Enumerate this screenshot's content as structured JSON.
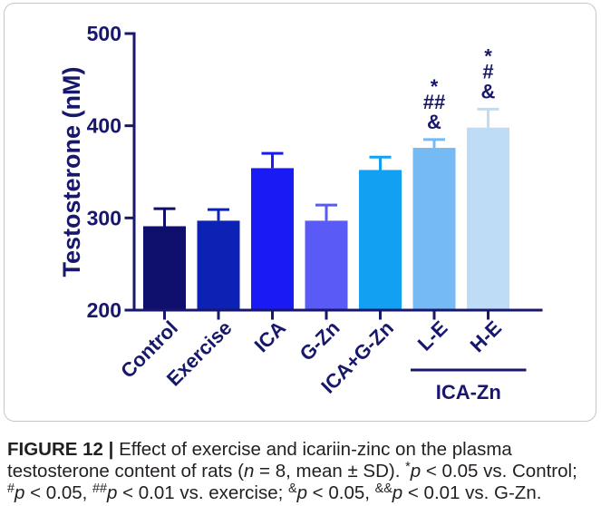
{
  "chart_data": {
    "type": "bar",
    "categories": [
      "Control",
      "Exercise",
      "ICA",
      "G-Zn",
      "ICA+G-Zn",
      "L-E",
      "H-E"
    ],
    "values": [
      291,
      297,
      354,
      297,
      352,
      376,
      398
    ],
    "sd": [
      19,
      12,
      16,
      17,
      14,
      9,
      20
    ],
    "colors": [
      "#0f0f6e",
      "#0c22b5",
      "#1a1af5",
      "#5a5af7",
      "#12a0f2",
      "#76baf4",
      "#bedcf6"
    ],
    "ylabel": "Testosterone (nM)",
    "ylim": [
      200,
      500
    ],
    "yticks": [
      200,
      300,
      400,
      500
    ],
    "grid": false,
    "annotations": [
      [],
      [],
      [],
      [],
      [],
      [
        "*",
        "##",
        "&"
      ],
      [
        "*",
        "#",
        "&"
      ]
    ],
    "groups": [
      {
        "label": "ICA-Zn",
        "members": [
          5,
          6
        ]
      }
    ]
  },
  "caption": {
    "label": "FIGURE 12 |",
    "description": [
      " Effect of exercise and icariin-zinc on the plasma",
      "testosterone content of rats (",
      "n",
      " = 8, mean ± SD). "
    ],
    "notes": [
      {
        "marker": "*",
        "var": "p",
        "text": " < 0.05 vs. Control;"
      },
      {
        "marker": "#",
        "var": "p",
        "text": " < 0.05, "
      },
      {
        "marker": "##",
        "var": "p",
        "text": " < 0.01 vs. exercise; "
      },
      {
        "marker": "&",
        "var": "p",
        "text": " < 0.05, "
      },
      {
        "marker": "&&",
        "var": "p",
        "text": " < 0.01 vs. G-Zn."
      }
    ]
  }
}
